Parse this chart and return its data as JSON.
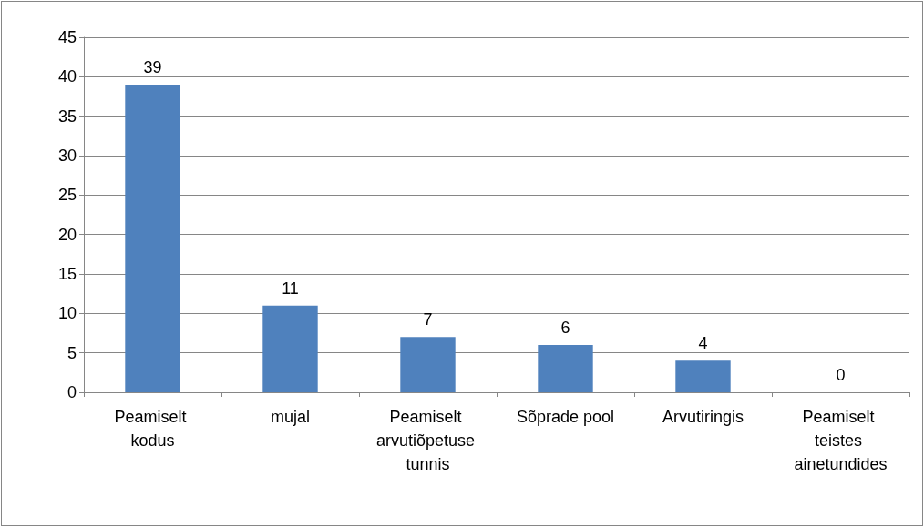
{
  "chart_data": {
    "type": "bar",
    "categories": [
      "Peamiselt kodus",
      "mujal",
      "Peamiselt arvutiõpetuse tunnis",
      "Sõprade pool",
      "Arvutiringis",
      "Peamiselt teistes ainetundides"
    ],
    "values": [
      39,
      11,
      7,
      6,
      4,
      0
    ],
    "color": "#4f81bd",
    "ylim": [
      0,
      45
    ],
    "yticks": [
      0,
      5,
      10,
      15,
      20,
      25,
      30,
      35,
      40,
      45
    ],
    "grid": "y",
    "data_labels": true
  }
}
